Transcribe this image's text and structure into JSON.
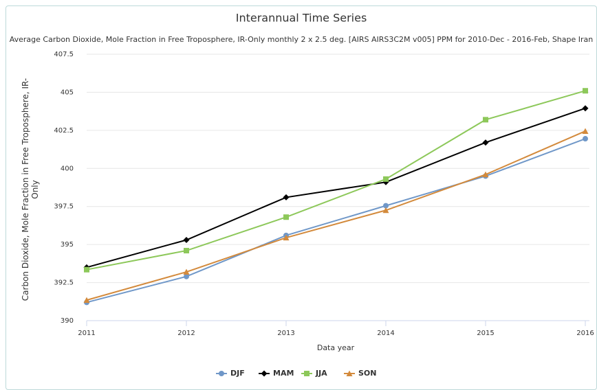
{
  "chart_data": {
    "type": "line",
    "title": "Interannual Time Series",
    "subtitle": "Average Carbon Dioxide, Mole Fraction in Free Troposphere, IR-Only monthly 2 x 2.5 deg. [AIRS AIRS3C2M v005] PPM for 2010-Dec - 2016-Feb, Shape Iran",
    "xlabel": "Data year",
    "ylabel": "Carbon Dioxide, Mole Fraction in Free Troposphere, IR-Only",
    "x": [
      2011,
      2012,
      2013,
      2014,
      2015,
      2016
    ],
    "xlim": [
      2011,
      2016
    ],
    "xticks": [
      2011,
      2012,
      2013,
      2014,
      2015,
      2016
    ],
    "ylim": [
      390,
      407.5
    ],
    "yticks": [
      390,
      392.5,
      395,
      397.5,
      400,
      402.5,
      405,
      407.5
    ],
    "grid": true,
    "legend": "bottom",
    "series": [
      {
        "name": "DJF",
        "color": "#6f97c8",
        "marker": "circle",
        "values": [
          391.2,
          392.9,
          395.6,
          397.55,
          399.5,
          401.95
        ]
      },
      {
        "name": "MAM",
        "color": "#000000",
        "marker": "diamond",
        "values": [
          393.5,
          395.3,
          398.1,
          399.1,
          401.7,
          403.95
        ]
      },
      {
        "name": "JJA",
        "color": "#8dc85a",
        "marker": "square",
        "values": [
          393.35,
          394.6,
          396.8,
          399.3,
          403.2,
          405.1
        ]
      },
      {
        "name": "SON",
        "color": "#d38a3c",
        "marker": "triangle",
        "values": [
          391.35,
          393.2,
          395.45,
          397.25,
          399.6,
          402.45
        ]
      }
    ]
  }
}
